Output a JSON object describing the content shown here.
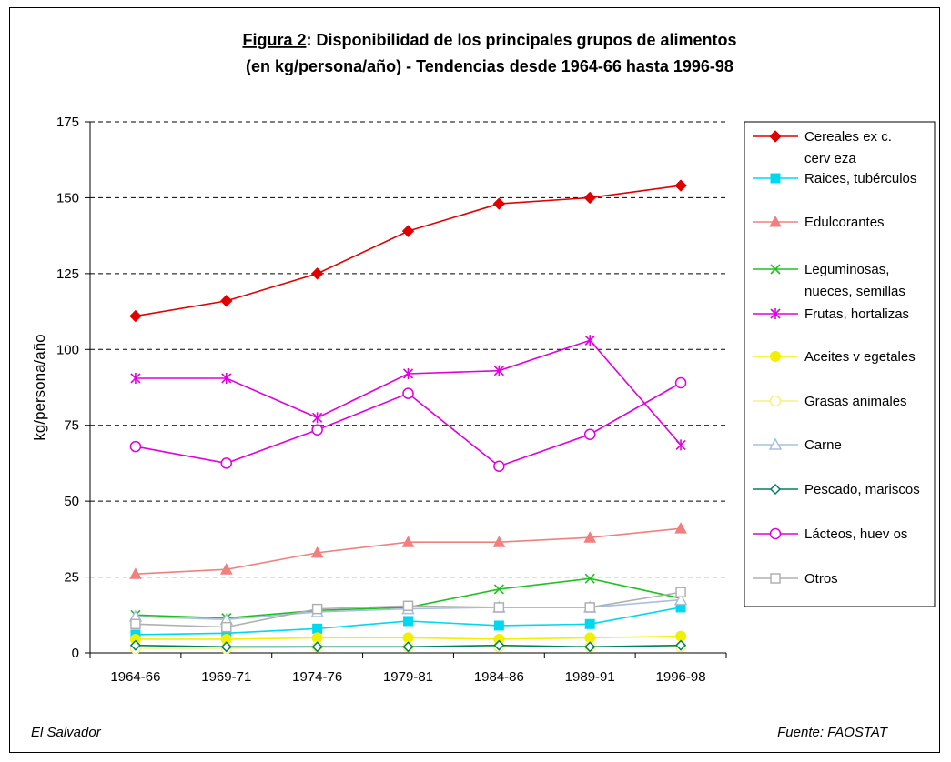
{
  "chart_data": {
    "type": "line",
    "title_prefix": "Figura 2",
    "title_line1_rest": ": Disponibilidad de los principales grupos de alimentos",
    "title_line2": "(en kg/persona/año) - Tendencias desde 1964-66 hasta 1996-98",
    "xlabel": "",
    "ylabel": "kg/persona/año",
    "ylim": [
      0,
      175
    ],
    "yticks": [
      0,
      25,
      50,
      75,
      100,
      125,
      150,
      175
    ],
    "grid": "horizontal dashed",
    "legend_position": "right",
    "categories": [
      "1964-66",
      "1969-71",
      "1974-76",
      "1979-81",
      "1984-86",
      "1989-91",
      "1996-98"
    ],
    "series": [
      {
        "name": "Cereales exc. cerveza",
        "legend_lines": [
          "Cereales ex c.",
          "cerv eza"
        ],
        "color": "#e00000",
        "marker": "diamond-filled",
        "values": [
          111,
          116,
          125,
          139,
          148,
          150,
          154
        ]
      },
      {
        "name": "Raices, tubérculos",
        "legend_lines": [
          "Raices, tubérculos"
        ],
        "color": "#00d8f0",
        "marker": "square-filled",
        "values": [
          6,
          6.5,
          8,
          10.5,
          9,
          9.5,
          15
        ]
      },
      {
        "name": "Edulcorantes",
        "legend_lines": [
          "Edulcorantes"
        ],
        "color": "#f08080",
        "marker": "triangle-filled",
        "values": [
          26,
          27.5,
          33,
          36.5,
          36.5,
          38,
          41
        ]
      },
      {
        "name": "Leguminosas, nueces, semillas",
        "legend_lines": [
          "Leguminosas,",
          "nueces, semillas"
        ],
        "color": "#20c020",
        "marker": "x",
        "values": [
          12.5,
          11.5,
          14,
          15,
          21,
          24.5,
          18
        ]
      },
      {
        "name": "Frutas, hortalizas",
        "legend_lines": [
          "Frutas, hortalizas"
        ],
        "color": "#e000e0",
        "marker": "star",
        "values": [
          90.5,
          90.5,
          77.5,
          92,
          93,
          103,
          68.5
        ]
      },
      {
        "name": "Aceites vegetales",
        "legend_lines": [
          "Aceites v egetales"
        ],
        "color": "#f0f000",
        "marker": "circle-filled",
        "values": [
          4.5,
          4.5,
          5,
          5,
          4.5,
          5,
          5.5
        ]
      },
      {
        "name": "Grasas animales",
        "legend_lines": [
          "Grasas animales"
        ],
        "color": "#f8f080",
        "marker": "circle-open",
        "values": [
          1.5,
          1.5,
          2,
          2,
          2,
          2,
          2
        ]
      },
      {
        "name": "Carne",
        "legend_lines": [
          "Carne"
        ],
        "color": "#a8c0e0",
        "marker": "triangle-open",
        "values": [
          12,
          11,
          13.5,
          14.5,
          15,
          15,
          17.5
        ]
      },
      {
        "name": "Pescado, mariscos",
        "legend_lines": [
          "Pescado, mariscos"
        ],
        "color": "#008060",
        "marker": "diamond-open",
        "values": [
          2.5,
          2,
          2,
          2,
          2.5,
          2,
          2.5
        ]
      },
      {
        "name": "Lácteos, huevos",
        "legend_lines": [
          "Lácteos, huev os"
        ],
        "color": "#e000e0",
        "marker": "circle-open",
        "values": [
          68,
          62.5,
          73.5,
          85.5,
          61.5,
          72,
          89
        ]
      },
      {
        "name": "Otros",
        "legend_lines": [
          "Otros"
        ],
        "color": "#b0b0b0",
        "marker": "square-open",
        "values": [
          9.5,
          8.5,
          14.5,
          15.5,
          15,
          15,
          20
        ]
      }
    ]
  },
  "footer": {
    "left": "El Salvador",
    "right": "Fuente: FAOSTAT"
  }
}
